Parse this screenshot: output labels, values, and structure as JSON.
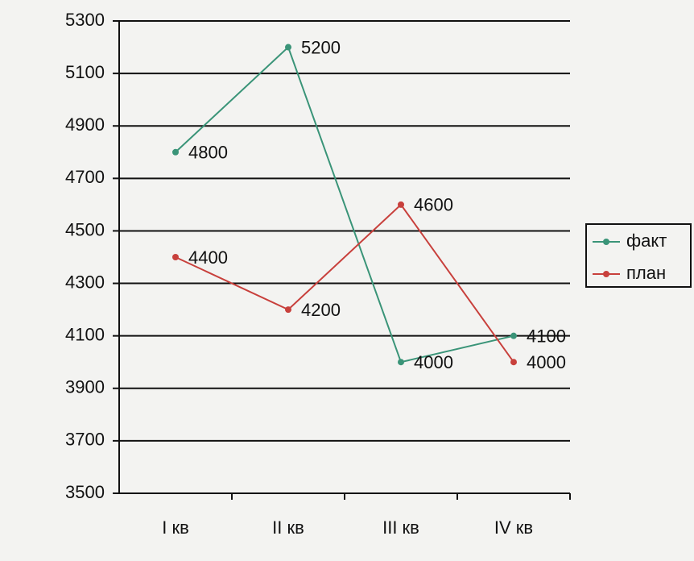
{
  "chart_data": {
    "type": "line",
    "categories": [
      "I кв",
      "II кв",
      "III кв",
      "IV кв"
    ],
    "series": [
      {
        "name": "факт",
        "color": "#3a9478",
        "values": [
          4800,
          5200,
          4000,
          4100
        ]
      },
      {
        "name": "план",
        "color": "#c8403c",
        "values": [
          4400,
          4200,
          4600,
          4000
        ]
      }
    ],
    "ylim": [
      3500,
      5300
    ],
    "yticks": [
      3500,
      3700,
      3900,
      4100,
      4300,
      4500,
      4700,
      4900,
      5100,
      5300
    ],
    "grid": true,
    "legend": "right"
  }
}
